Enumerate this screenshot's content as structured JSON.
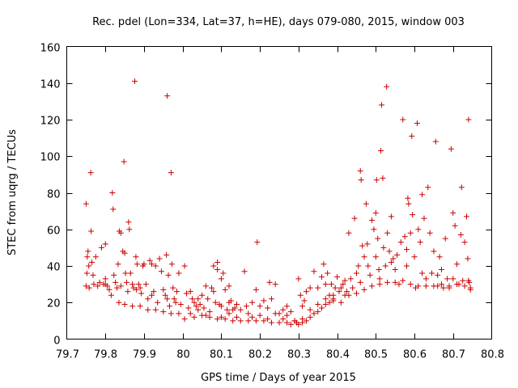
{
  "chart_data": {
    "type": "scatter",
    "title": "Rec. pdel (Lon=334, Lat=37, h=HE), days 079-080, 2015, window 003",
    "xlabel": "GPS time / Days of year 2015",
    "ylabel": "STEC from uqrg / TECUs",
    "xlim": [
      79.7,
      80.8
    ],
    "ylim": [
      0,
      160
    ],
    "xticks": [
      79.7,
      79.8,
      79.9,
      80,
      80.1,
      80.2,
      80.3,
      80.4,
      80.5,
      80.6,
      80.7,
      80.8
    ],
    "xtick_labels": [
      "79.7",
      "79.8",
      "79.9",
      "80",
      "80.1",
      "80.2",
      "80.3",
      "80.4",
      "80.5",
      "80.6",
      "80.7",
      "80.8"
    ],
    "yticks": [
      0,
      20,
      40,
      60,
      80,
      100,
      120,
      140,
      160
    ],
    "ytick_labels": [
      "0",
      "20",
      "40",
      "60",
      "80",
      "100",
      "120",
      "140",
      "160"
    ],
    "grid": false,
    "legend": "none",
    "marker": "+",
    "color": "#cc0000",
    "series": [
      {
        "name": "STEC",
        "points": [
          [
            79.75,
            74
          ],
          [
            79.755,
            48
          ],
          [
            79.753,
            45
          ],
          [
            79.757,
            40
          ],
          [
            79.752,
            36
          ],
          [
            79.75,
            29
          ],
          [
            79.758,
            28
          ],
          [
            79.762,
            91
          ],
          [
            79.763,
            59
          ],
          [
            79.765,
            42
          ],
          [
            79.768,
            35
          ],
          [
            79.77,
            30
          ],
          [
            79.775,
            45
          ],
          [
            79.78,
            29
          ],
          [
            79.785,
            31
          ],
          [
            79.79,
            50
          ],
          [
            79.795,
            30
          ],
          [
            79.8,
            52
          ],
          [
            79.805,
            29
          ],
          [
            79.81,
            27
          ],
          [
            79.818,
            80
          ],
          [
            79.82,
            71
          ],
          [
            79.822,
            35
          ],
          [
            79.826,
            31
          ],
          [
            79.83,
            28
          ],
          [
            79.833,
            41
          ],
          [
            79.836,
            59
          ],
          [
            79.84,
            58
          ],
          [
            79.845,
            48
          ],
          [
            79.848,
            97
          ],
          [
            79.85,
            47
          ],
          [
            79.852,
            36
          ],
          [
            79.855,
            31
          ],
          [
            79.858,
            26
          ],
          [
            79.86,
            64
          ],
          [
            79.862,
            60
          ],
          [
            79.865,
            36
          ],
          [
            79.87,
            30
          ],
          [
            79.873,
            28
          ],
          [
            79.876,
            141
          ],
          [
            79.879,
            45
          ],
          [
            79.882,
            41
          ],
          [
            79.886,
            30
          ],
          [
            79.89,
            28
          ],
          [
            79.893,
            25
          ],
          [
            79.897,
            40
          ],
          [
            79.9,
            41
          ],
          [
            79.905,
            30
          ],
          [
            79.91,
            22
          ],
          [
            79.915,
            43
          ],
          [
            79.92,
            41
          ],
          [
            79.925,
            26
          ],
          [
            79.93,
            40
          ],
          [
            79.935,
            20
          ],
          [
            79.94,
            44
          ],
          [
            79.945,
            37
          ],
          [
            79.95,
            27
          ],
          [
            79.955,
            24
          ],
          [
            79.958,
            46
          ],
          [
            79.96,
            133
          ],
          [
            79.963,
            35
          ],
          [
            79.966,
            18
          ],
          [
            79.97,
            91
          ],
          [
            79.972,
            41
          ],
          [
            79.975,
            28
          ],
          [
            79.978,
            22
          ],
          [
            79.982,
            20
          ],
          [
            79.985,
            26
          ],
          [
            79.99,
            36
          ],
          [
            79.995,
            19
          ],
          [
            79.8,
            33
          ],
          [
            79.815,
            24
          ],
          [
            79.835,
            20
          ],
          [
            79.85,
            19
          ],
          [
            79.87,
            18
          ],
          [
            79.89,
            18
          ],
          [
            79.91,
            16
          ],
          [
            79.93,
            16
          ],
          [
            79.95,
            15
          ],
          [
            79.97,
            14
          ],
          [
            79.99,
            14
          ],
          [
            79.8,
            30
          ],
          [
            79.84,
            29
          ],
          [
            79.88,
            27
          ],
          [
            79.92,
            24
          ],
          [
            79.96,
            22
          ],
          [
            80.005,
            40
          ],
          [
            80.01,
            25
          ],
          [
            80.015,
            17
          ],
          [
            80.02,
            26
          ],
          [
            80.025,
            22
          ],
          [
            80.03,
            20
          ],
          [
            80.035,
            18
          ],
          [
            80.04,
            22
          ],
          [
            80.045,
            19
          ],
          [
            80.05,
            24
          ],
          [
            80.055,
            17
          ],
          [
            80.06,
            29
          ],
          [
            80.065,
            22
          ],
          [
            80.07,
            15
          ],
          [
            80.075,
            28
          ],
          [
            80.08,
            26
          ],
          [
            80.085,
            20
          ],
          [
            80.09,
            38
          ],
          [
            80.095,
            19
          ],
          [
            80.1,
            18
          ],
          [
            80.105,
            36
          ],
          [
            80.11,
            27
          ],
          [
            80.115,
            16
          ],
          [
            80.12,
            20
          ],
          [
            80.125,
            21
          ],
          [
            80.13,
            16
          ],
          [
            80.135,
            17
          ],
          [
            80.14,
            19
          ],
          [
            80.15,
            16
          ],
          [
            80.16,
            37
          ],
          [
            80.165,
            18
          ],
          [
            80.17,
            14
          ],
          [
            80.18,
            20
          ],
          [
            80.19,
            27
          ],
          [
            80.193,
            53
          ],
          [
            80.2,
            18
          ],
          [
            80.21,
            21
          ],
          [
            80.22,
            17
          ],
          [
            80.225,
            31
          ],
          [
            80.23,
            22
          ],
          [
            80.24,
            30
          ],
          [
            80.25,
            14
          ],
          [
            80.26,
            16
          ],
          [
            80.27,
            18
          ],
          [
            80.28,
            15
          ],
          [
            80.29,
            10
          ],
          [
            80.295,
            9
          ],
          [
            80.3,
            33
          ],
          [
            80.305,
            24
          ],
          [
            80.31,
            18
          ],
          [
            80.315,
            21
          ],
          [
            80.32,
            26
          ],
          [
            80.33,
            28
          ],
          [
            80.34,
            37
          ],
          [
            80.35,
            28
          ],
          [
            80.36,
            34
          ],
          [
            80.365,
            41
          ],
          [
            80.37,
            30
          ],
          [
            80.375,
            36
          ],
          [
            80.38,
            24
          ],
          [
            80.385,
            30
          ],
          [
            80.39,
            22
          ],
          [
            80.395,
            28
          ],
          [
            80.08,
            40
          ],
          [
            80.09,
            42
          ],
          [
            80.1,
            33
          ],
          [
            80.12,
            29
          ],
          [
            80.005,
            11
          ],
          [
            80.03,
            12
          ],
          [
            80.05,
            13
          ],
          [
            80.07,
            12
          ],
          [
            80.09,
            11
          ],
          [
            80.11,
            11
          ],
          [
            80.13,
            10
          ],
          [
            80.15,
            10
          ],
          [
            80.17,
            10
          ],
          [
            80.19,
            10
          ],
          [
            80.21,
            10
          ],
          [
            80.23,
            9
          ],
          [
            80.25,
            9
          ],
          [
            80.27,
            9
          ],
          [
            80.28,
            8
          ],
          [
            80.3,
            8
          ],
          [
            80.31,
            9
          ],
          [
            80.32,
            10
          ],
          [
            80.33,
            12
          ],
          [
            80.34,
            14
          ],
          [
            80.35,
            15
          ],
          [
            80.36,
            17
          ],
          [
            80.37,
            19
          ],
          [
            80.38,
            20
          ],
          [
            80.39,
            21
          ],
          [
            80.02,
            14
          ],
          [
            80.06,
            13
          ],
          [
            80.1,
            12
          ],
          [
            80.14,
            12
          ],
          [
            80.18,
            12
          ],
          [
            80.22,
            11
          ],
          [
            80.26,
            11
          ],
          [
            80.29,
            10
          ],
          [
            80.31,
            11
          ],
          [
            80.04,
            16
          ],
          [
            80.12,
            14
          ],
          [
            80.2,
            13
          ],
          [
            80.24,
            14
          ],
          [
            80.27,
            13
          ],
          [
            80.33,
            16
          ],
          [
            80.35,
            19
          ],
          [
            80.37,
            22
          ],
          [
            80.39,
            24
          ],
          [
            80.4,
            34
          ],
          [
            80.405,
            26
          ],
          [
            80.41,
            28
          ],
          [
            80.415,
            30
          ],
          [
            80.42,
            32
          ],
          [
            80.425,
            26
          ],
          [
            80.43,
            58
          ],
          [
            80.435,
            33
          ],
          [
            80.44,
            28
          ],
          [
            80.445,
            66
          ],
          [
            80.45,
            36
          ],
          [
            80.455,
            40
          ],
          [
            80.46,
            92
          ],
          [
            80.462,
            87
          ],
          [
            80.465,
            51
          ],
          [
            80.47,
            45
          ],
          [
            80.475,
            74
          ],
          [
            80.478,
            52
          ],
          [
            80.48,
            40
          ],
          [
            80.485,
            35
          ],
          [
            80.49,
            65
          ],
          [
            80.495,
            60
          ],
          [
            80.5,
            69
          ],
          [
            80.502,
            87
          ],
          [
            80.505,
            55
          ],
          [
            80.508,
            38
          ],
          [
            80.51,
            33
          ],
          [
            80.513,
            103
          ],
          [
            80.515,
            128
          ],
          [
            80.518,
            88
          ],
          [
            80.52,
            50
          ],
          [
            80.525,
            40
          ],
          [
            80.528,
            138
          ],
          [
            80.53,
            58
          ],
          [
            80.535,
            48
          ],
          [
            80.54,
            67
          ],
          [
            80.545,
            44
          ],
          [
            80.55,
            38
          ],
          [
            80.555,
            46
          ],
          [
            80.56,
            30
          ],
          [
            80.565,
            53
          ],
          [
            80.57,
            120
          ],
          [
            80.575,
            56
          ],
          [
            80.58,
            49
          ],
          [
            80.583,
            77
          ],
          [
            80.585,
            74
          ],
          [
            80.59,
            58
          ],
          [
            80.593,
            111
          ],
          [
            80.595,
            68
          ],
          [
            80.6,
            45
          ],
          [
            80.603,
            28
          ],
          [
            80.607,
            118
          ],
          [
            80.61,
            60
          ],
          [
            80.615,
            53
          ],
          [
            80.62,
            79
          ],
          [
            80.625,
            66
          ],
          [
            80.63,
            33
          ],
          [
            80.635,
            83
          ],
          [
            80.64,
            58
          ],
          [
            80.645,
            36
          ],
          [
            80.65,
            48
          ],
          [
            80.655,
            108
          ],
          [
            80.66,
            29
          ],
          [
            80.665,
            45
          ],
          [
            80.67,
            38
          ],
          [
            80.675,
            28
          ],
          [
            80.68,
            55
          ],
          [
            80.685,
            33
          ],
          [
            80.69,
            28
          ],
          [
            80.695,
            104
          ],
          [
            80.7,
            69
          ],
          [
            80.705,
            62
          ],
          [
            80.71,
            41
          ],
          [
            80.715,
            30
          ],
          [
            80.72,
            57
          ],
          [
            80.722,
            83
          ],
          [
            80.725,
            32
          ],
          [
            80.73,
            53
          ],
          [
            80.735,
            67
          ],
          [
            80.738,
            44
          ],
          [
            80.74,
            120
          ],
          [
            80.742,
            31
          ],
          [
            80.745,
            27
          ],
          [
            80.41,
            20
          ],
          [
            80.43,
            24
          ],
          [
            80.45,
            25
          ],
          [
            80.47,
            27
          ],
          [
            80.49,
            29
          ],
          [
            80.51,
            30
          ],
          [
            80.53,
            31
          ],
          [
            80.55,
            31
          ],
          [
            80.57,
            32
          ],
          [
            80.59,
            30
          ],
          [
            80.61,
            29
          ],
          [
            80.63,
            29
          ],
          [
            80.65,
            29
          ],
          [
            80.67,
            30
          ],
          [
            80.69,
            29
          ],
          [
            80.71,
            30
          ],
          [
            80.73,
            29
          ],
          [
            80.745,
            28
          ],
          [
            80.42,
            24
          ],
          [
            80.46,
            31
          ],
          [
            80.5,
            45
          ],
          [
            80.54,
            42
          ],
          [
            80.58,
            40
          ],
          [
            80.62,
            36
          ],
          [
            80.66,
            35
          ],
          [
            80.7,
            33
          ],
          [
            80.74,
            32
          ]
        ]
      }
    ]
  }
}
